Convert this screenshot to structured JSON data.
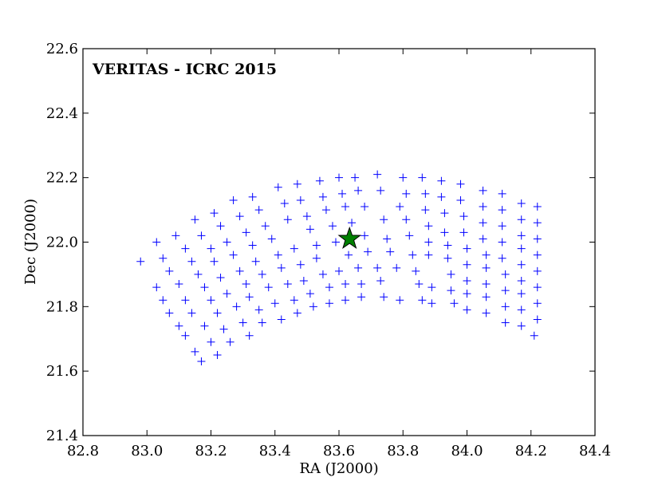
{
  "chart_data": {
    "type": "scatter",
    "title": "",
    "annotation": "VERITAS - ICRC 2015",
    "xlabel": "RA (J2000)",
    "ylabel": "Dec (J2000)",
    "xlim": [
      82.8,
      84.4
    ],
    "ylim": [
      21.4,
      22.6
    ],
    "xticks": [
      82.8,
      83.0,
      83.2,
      83.4,
      83.6,
      83.8,
      84.0,
      84.2,
      84.4
    ],
    "xtick_labels": [
      "82.8",
      "83.0",
      "83.2",
      "83.4",
      "83.6",
      "83.8",
      "84.0",
      "84.2",
      "84.4"
    ],
    "yticks": [
      21.4,
      21.6,
      21.8,
      22.0,
      22.2,
      22.4,
      22.6
    ],
    "ytick_labels": [
      "21.4",
      "21.6",
      "21.8",
      "22.0",
      "22.2",
      "22.4",
      "22.6"
    ],
    "grid": false,
    "colors": {
      "points": "#0000ff",
      "star_fill": "#008000",
      "star_edge": "#000000"
    },
    "series": [
      {
        "marker": "plus",
        "points": [
          [
            82.98,
            21.94
          ],
          [
            83.03,
            22.0
          ],
          [
            83.03,
            21.86
          ],
          [
            83.05,
            21.95
          ],
          [
            83.05,
            21.82
          ],
          [
            83.07,
            21.91
          ],
          [
            83.07,
            21.78
          ],
          [
            83.09,
            22.02
          ],
          [
            83.1,
            21.87
          ],
          [
            83.1,
            21.74
          ],
          [
            83.12,
            21.98
          ],
          [
            83.12,
            21.82
          ],
          [
            83.12,
            21.71
          ],
          [
            83.14,
            21.94
          ],
          [
            83.14,
            21.78
          ],
          [
            83.15,
            21.66
          ],
          [
            83.15,
            22.07
          ],
          [
            83.16,
            21.9
          ],
          [
            83.17,
            21.63
          ],
          [
            83.17,
            22.02
          ],
          [
            83.18,
            21.86
          ],
          [
            83.18,
            21.74
          ],
          [
            83.2,
            21.98
          ],
          [
            83.2,
            21.82
          ],
          [
            83.2,
            21.69
          ],
          [
            83.21,
            22.09
          ],
          [
            83.21,
            21.94
          ],
          [
            83.22,
            21.78
          ],
          [
            83.22,
            21.65
          ],
          [
            83.23,
            22.05
          ],
          [
            83.23,
            21.89
          ],
          [
            83.24,
            21.73
          ],
          [
            83.25,
            22.0
          ],
          [
            83.25,
            21.84
          ],
          [
            83.26,
            21.69
          ],
          [
            83.27,
            21.96
          ],
          [
            83.27,
            22.13
          ],
          [
            83.28,
            21.8
          ],
          [
            83.29,
            21.91
          ],
          [
            83.29,
            22.08
          ],
          [
            83.3,
            21.75
          ],
          [
            83.31,
            21.87
          ],
          [
            83.31,
            22.03
          ],
          [
            83.32,
            21.71
          ],
          [
            83.32,
            21.83
          ],
          [
            83.33,
            21.99
          ],
          [
            83.33,
            22.14
          ],
          [
            83.34,
            21.94
          ],
          [
            83.35,
            21.79
          ],
          [
            83.35,
            22.1
          ],
          [
            83.36,
            21.75
          ],
          [
            83.36,
            21.9
          ],
          [
            83.37,
            22.05
          ],
          [
            83.38,
            21.86
          ],
          [
            83.39,
            22.01
          ],
          [
            83.4,
            21.81
          ],
          [
            83.41,
            21.96
          ],
          [
            83.41,
            22.17
          ],
          [
            83.42,
            21.76
          ],
          [
            83.42,
            21.92
          ],
          [
            83.43,
            22.12
          ],
          [
            83.44,
            21.87
          ],
          [
            83.44,
            22.07
          ],
          [
            83.46,
            21.82
          ],
          [
            83.46,
            21.98
          ],
          [
            83.47,
            22.18
          ],
          [
            83.47,
            21.78
          ],
          [
            83.48,
            21.93
          ],
          [
            83.48,
            22.13
          ],
          [
            83.49,
            21.88
          ],
          [
            83.5,
            22.08
          ],
          [
            83.51,
            21.84
          ],
          [
            83.51,
            22.04
          ],
          [
            83.52,
            21.8
          ],
          [
            83.53,
            21.99
          ],
          [
            83.53,
            21.95
          ],
          [
            83.54,
            22.19
          ],
          [
            83.55,
            21.9
          ],
          [
            83.55,
            22.14
          ],
          [
            83.56,
            22.1
          ],
          [
            83.57,
            21.86
          ],
          [
            83.57,
            21.81
          ],
          [
            83.58,
            22.05
          ],
          [
            83.59,
            22.0
          ],
          [
            83.6,
            22.2
          ],
          [
            83.6,
            21.91
          ],
          [
            83.61,
            22.15
          ],
          [
            83.62,
            21.87
          ],
          [
            83.62,
            21.82
          ],
          [
            83.62,
            22.11
          ],
          [
            83.63,
            21.96
          ],
          [
            83.64,
            22.06
          ],
          [
            83.65,
            22.2
          ],
          [
            83.66,
            21.92
          ],
          [
            83.66,
            22.16
          ],
          [
            83.67,
            21.87
          ],
          [
            83.67,
            21.83
          ],
          [
            83.68,
            22.11
          ],
          [
            83.68,
            22.02
          ],
          [
            83.69,
            21.97
          ],
          [
            83.72,
            22.21
          ],
          [
            83.72,
            21.92
          ],
          [
            83.73,
            22.16
          ],
          [
            83.73,
            21.88
          ],
          [
            83.74,
            22.07
          ],
          [
            83.74,
            21.83
          ],
          [
            83.75,
            22.01
          ],
          [
            83.76,
            21.97
          ],
          [
            83.78,
            21.92
          ],
          [
            83.79,
            22.11
          ],
          [
            83.79,
            21.82
          ],
          [
            83.8,
            22.2
          ],
          [
            83.81,
            22.15
          ],
          [
            83.81,
            22.07
          ],
          [
            83.82,
            22.02
          ],
          [
            83.83,
            21.96
          ],
          [
            83.84,
            21.91
          ],
          [
            83.85,
            21.87
          ],
          [
            83.86,
            22.2
          ],
          [
            83.86,
            21.82
          ],
          [
            83.87,
            22.15
          ],
          [
            83.87,
            22.1
          ],
          [
            83.88,
            22.05
          ],
          [
            83.88,
            22.0
          ],
          [
            83.88,
            21.96
          ],
          [
            83.89,
            21.86
          ],
          [
            83.89,
            21.81
          ],
          [
            83.92,
            22.19
          ],
          [
            83.92,
            22.14
          ],
          [
            83.93,
            22.09
          ],
          [
            83.93,
            22.03
          ],
          [
            83.94,
            21.99
          ],
          [
            83.94,
            21.95
          ],
          [
            83.95,
            21.9
          ],
          [
            83.95,
            21.85
          ],
          [
            83.96,
            21.81
          ],
          [
            83.98,
            22.18
          ],
          [
            83.98,
            22.13
          ],
          [
            83.99,
            22.08
          ],
          [
            83.99,
            22.03
          ],
          [
            84.0,
            21.98
          ],
          [
            84.0,
            21.93
          ],
          [
            84.0,
            21.88
          ],
          [
            84.0,
            21.84
          ],
          [
            84.0,
            21.79
          ],
          [
            84.05,
            22.16
          ],
          [
            84.05,
            22.11
          ],
          [
            84.05,
            22.06
          ],
          [
            84.05,
            22.01
          ],
          [
            84.06,
            21.96
          ],
          [
            84.06,
            21.92
          ],
          [
            84.06,
            21.87
          ],
          [
            84.06,
            21.83
          ],
          [
            84.06,
            21.78
          ],
          [
            84.11,
            22.15
          ],
          [
            84.11,
            22.1
          ],
          [
            84.11,
            22.05
          ],
          [
            84.11,
            22.0
          ],
          [
            84.11,
            21.95
          ],
          [
            84.12,
            21.9
          ],
          [
            84.12,
            21.85
          ],
          [
            84.12,
            21.8
          ],
          [
            84.12,
            21.75
          ],
          [
            84.17,
            22.12
          ],
          [
            84.17,
            22.07
          ],
          [
            84.17,
            22.02
          ],
          [
            84.17,
            21.98
          ],
          [
            84.17,
            21.93
          ],
          [
            84.17,
            21.88
          ],
          [
            84.17,
            21.84
          ],
          [
            84.17,
            21.79
          ],
          [
            84.17,
            21.74
          ],
          [
            84.22,
            22.11
          ],
          [
            84.22,
            22.06
          ],
          [
            84.22,
            22.01
          ],
          [
            84.22,
            21.96
          ],
          [
            84.22,
            21.91
          ],
          [
            84.22,
            21.86
          ],
          [
            84.22,
            21.81
          ],
          [
            84.22,
            21.76
          ],
          [
            84.21,
            21.71
          ]
        ]
      },
      {
        "marker": "star",
        "points": [
          [
            83.633,
            22.01
          ]
        ]
      }
    ]
  }
}
